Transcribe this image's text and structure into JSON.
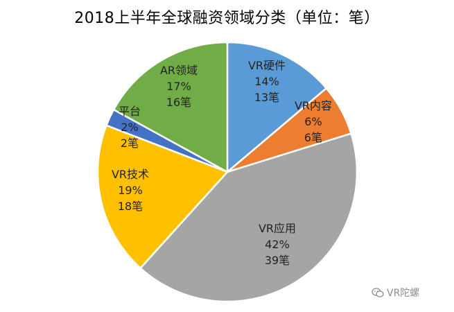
{
  "chart_data": {
    "type": "pie",
    "title": "2018上半年全球融资领域分类（单位：笔）",
    "slices": [
      {
        "name": "VR硬件",
        "percent_label": "14%",
        "count_label": "13笔",
        "value": 13,
        "color": "#5b9bd5"
      },
      {
        "name": "VR内容",
        "percent_label": "6%",
        "count_label": "6笔",
        "value": 6,
        "color": "#ed7d31"
      },
      {
        "name": "VR应用",
        "percent_label": "42%",
        "count_label": "39笔",
        "value": 39,
        "color": "#a5a5a5"
      },
      {
        "name": "VR技术",
        "percent_label": "19%",
        "count_label": "18笔",
        "value": 18,
        "color": "#ffc000"
      },
      {
        "name": "平台",
        "percent_label": "2%",
        "count_label": "2笔",
        "value": 2,
        "color": "#4472c4"
      },
      {
        "name": "AR领域",
        "percent_label": "17%",
        "count_label": "16笔",
        "value": 16,
        "color": "#70ad47"
      }
    ],
    "start": "12 o'clock",
    "direction": "clockwise",
    "legend": "none"
  },
  "watermark": {
    "text": "VR陀螺",
    "icon": "wechat-icon"
  }
}
